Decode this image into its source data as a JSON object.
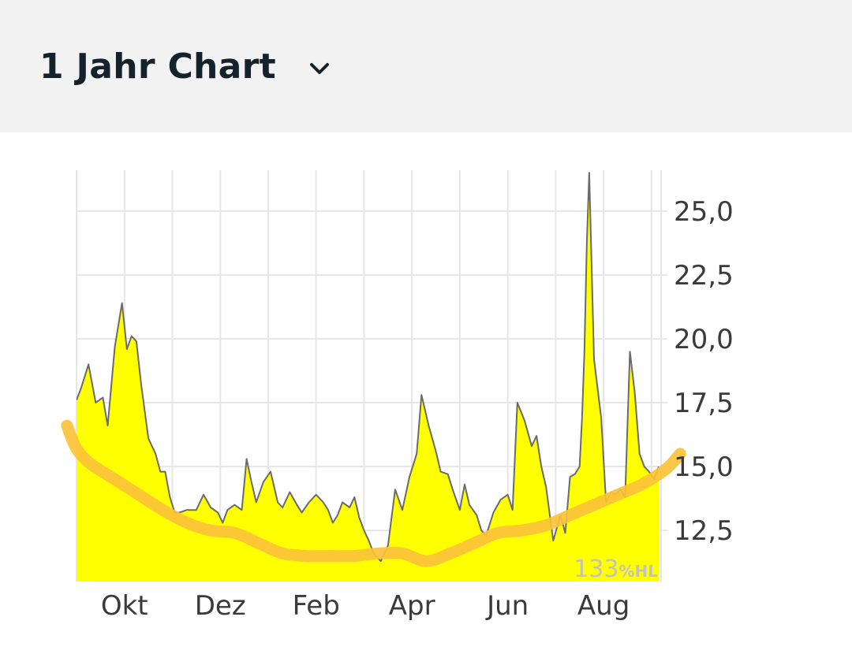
{
  "header": {
    "title": "1 Jahr Chart",
    "dropdown_icon": "chevron-down-icon"
  },
  "colors": {
    "area_fill": "#ffff00",
    "price_line": "#6b6b6b",
    "trend_line": "#fbc23a",
    "grid": "#e6e6e6"
  },
  "chart_data": {
    "type": "area",
    "title": "1 Jahr Chart",
    "xlabel": "",
    "ylabel": "",
    "ylim": [
      10.5,
      26.6
    ],
    "y_ticks": [
      "25,0",
      "22,5",
      "20,0",
      "17,5",
      "15,0",
      "12,5"
    ],
    "y_tick_values": [
      25,
      22.5,
      20,
      17.5,
      15,
      12.5
    ],
    "x_ticks": [
      "Okt",
      "Dez",
      "Feb",
      "Apr",
      "Jun",
      "Aug"
    ],
    "x_tick_months": [
      1,
      3,
      5,
      7,
      9,
      11
    ],
    "x_range_months": [
      0,
      12.2
    ],
    "watermark": {
      "value": "133",
      "unit": "%HL"
    },
    "grid": true,
    "series": [
      {
        "x": [
          0,
          0.1,
          0.25,
          0.4,
          0.55,
          0.65,
          0.8,
          0.95,
          1.05,
          1.15,
          1.25,
          1.35,
          1.5,
          1.65,
          1.75,
          1.85,
          1.95,
          2.05,
          2.15,
          2.3,
          2.5,
          2.65,
          2.8,
          2.95,
          3.05,
          3.15,
          3.3,
          3.45,
          3.55,
          3.65,
          3.75,
          3.9,
          4.05,
          4.2,
          4.3,
          4.45,
          4.6,
          4.7,
          4.85,
          5.0,
          5.15,
          5.25,
          5.35,
          5.45,
          5.55,
          5.7,
          5.8,
          5.9,
          6.0,
          6.1,
          6.2,
          6.35,
          6.5,
          6.65,
          6.8,
          6.95,
          7.1,
          7.2,
          7.35,
          7.5,
          7.6,
          7.75,
          7.85,
          8.0,
          8.1,
          8.2,
          8.35,
          8.45,
          8.55,
          8.7,
          8.85,
          9.0,
          9.1,
          9.2,
          9.35,
          9.5,
          9.6,
          9.7,
          9.8,
          9.95,
          10.1,
          10.2,
          10.3,
          10.4,
          10.5,
          10.55,
          10.6,
          10.65,
          10.7,
          10.8,
          10.95,
          11.05,
          11.15,
          11.25,
          11.35,
          11.45,
          11.55,
          11.65,
          11.75,
          11.85,
          11.95,
          12.05,
          12.15
        ],
        "y": [
          17.6,
          18.1,
          19.0,
          17.5,
          17.7,
          16.6,
          19.7,
          21.4,
          19.6,
          20.1,
          19.9,
          18.2,
          16.1,
          15.5,
          14.8,
          14.8,
          13.8,
          13.2,
          13.2,
          13.3,
          13.3,
          13.9,
          13.4,
          13.2,
          12.8,
          13.3,
          13.5,
          13.3,
          15.3,
          14.4,
          13.6,
          14.4,
          14.8,
          13.6,
          13.4,
          14.0,
          13.5,
          13.2,
          13.6,
          13.9,
          13.6,
          13.3,
          12.8,
          13.1,
          13.6,
          13.4,
          13.8,
          13.0,
          12.5,
          12.1,
          11.6,
          11.3,
          11.9,
          14.1,
          13.3,
          14.6,
          15.5,
          17.8,
          16.6,
          15.6,
          14.8,
          14.7,
          14.1,
          13.3,
          14.3,
          13.5,
          13.1,
          12.5,
          12.3,
          13.2,
          13.7,
          13.9,
          13.3,
          17.5,
          16.8,
          15.8,
          16.2,
          15.0,
          14.2,
          12.1,
          13.1,
          12.4,
          14.6,
          14.7,
          15.0,
          16.9,
          19.5,
          23.8,
          26.5,
          19.2,
          16.9,
          13.6,
          14.0,
          13.9,
          14.1,
          13.8,
          19.5,
          17.9,
          15.5,
          15.0,
          14.8,
          14.5,
          15.0
        ]
      },
      {
        "type": "trend",
        "x": [
          -0.2,
          0.0,
          0.3,
          0.8,
          1.3,
          1.8,
          2.3,
          2.8,
          3.3,
          3.8,
          4.3,
          4.8,
          5.3,
          5.8,
          6.3,
          6.8,
          7.3,
          7.8,
          8.3,
          8.8,
          9.3,
          9.8,
          10.3,
          10.8,
          11.3,
          11.8,
          12.3,
          12.6
        ],
        "y": [
          16.6,
          15.7,
          15.1,
          14.5,
          13.9,
          13.3,
          12.8,
          12.5,
          12.4,
          12.0,
          11.6,
          11.5,
          11.5,
          11.5,
          11.6,
          11.6,
          11.3,
          11.6,
          12.0,
          12.4,
          12.5,
          12.7,
          13.1,
          13.5,
          13.9,
          14.3,
          14.9,
          15.5
        ]
      }
    ]
  }
}
